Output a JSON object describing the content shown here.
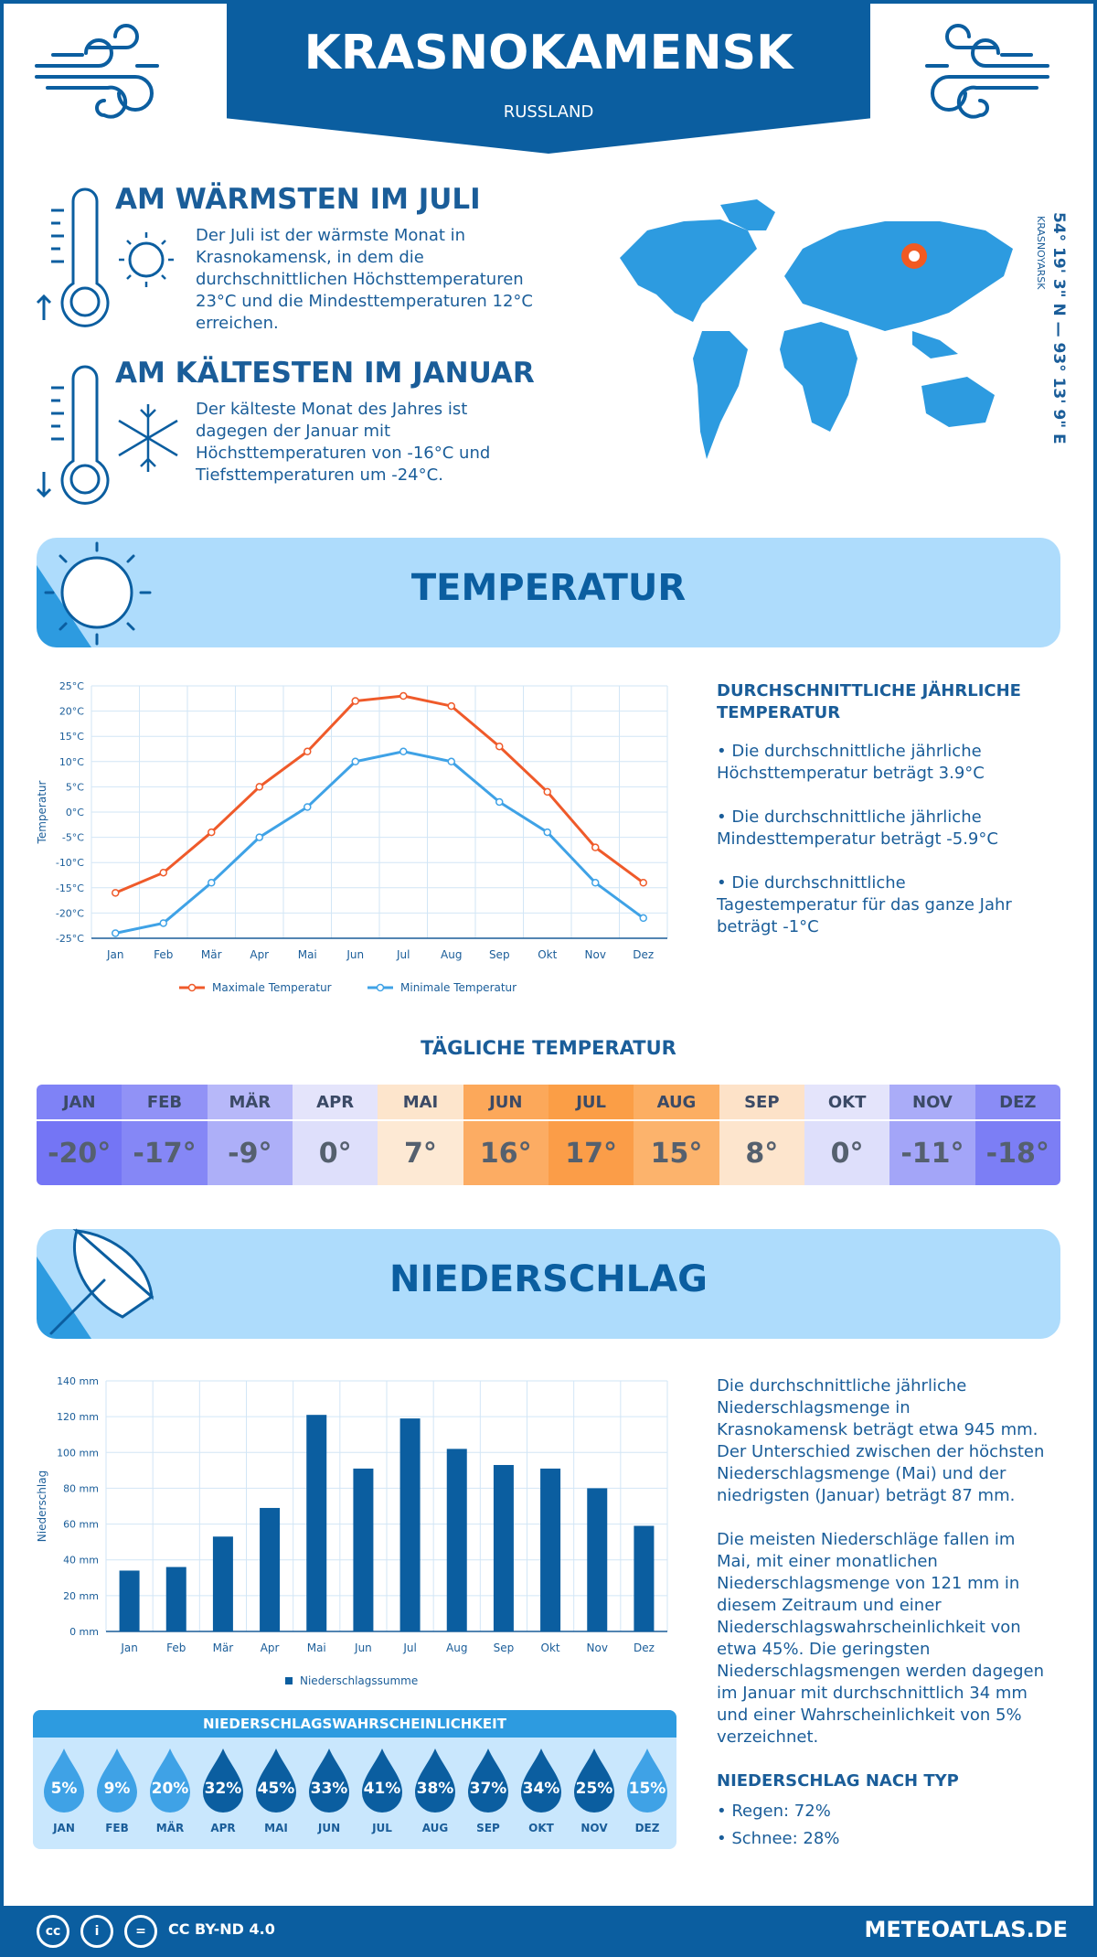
{
  "header": {
    "city": "KRASNOKAMENSK",
    "country": "RUSSLAND"
  },
  "facts": {
    "warm": {
      "title": "AM WÄRMSTEN IM JULI",
      "text": "Der Juli ist der wärmste Monat in Krasnokamensk, in dem die durchschnittlichen Höchsttemperaturen 23°C und die Mindesttemperaturen 12°C erreichen."
    },
    "cold": {
      "title": "AM KÄLTESTEN IM JANUAR",
      "text": "Der kälteste Monat des Jahres ist dagegen der Januar mit Höchsttemperaturen von -16°C und Tiefsttemperaturen um -24°C."
    }
  },
  "map": {
    "coords": "54° 19' 3\" N — 93° 13' 9\" E",
    "region": "KRASNOYARSK"
  },
  "temperature_section": {
    "title": "TEMPERATUR",
    "side_title": "DURCHSCHNITTLICHE JÄHRLICHE TEMPERATUR",
    "points": [
      "• Die durchschnittliche jährliche Höchsttemperatur beträgt 3.9°C",
      "• Die durchschnittliche jährliche Mindesttemperatur beträgt -5.9°C",
      "• Die durchschnittliche Tagestemperatur für das ganze Jahr beträgt -1°C"
    ]
  },
  "daily": {
    "title": "TÄGLICHE TEMPERATUR",
    "months": [
      "JAN",
      "FEB",
      "MÄR",
      "APR",
      "MAI",
      "JUN",
      "JUL",
      "AUG",
      "SEP",
      "OKT",
      "NOV",
      "DEZ"
    ],
    "values": [
      "-20°",
      "-17°",
      "-9°",
      "0°",
      "7°",
      "16°",
      "17°",
      "15°",
      "8°",
      "0°",
      "-11°",
      "-18°"
    ],
    "head_colors": [
      "#7f82f6",
      "#9192f6",
      "#b7b8f9",
      "#e4e4fb",
      "#fde5cc",
      "#fca85a",
      "#fb9e46",
      "#fcae62",
      "#fde2c8",
      "#e4e4fb",
      "#aaacf8",
      "#8a8cf6"
    ],
    "value_colors": [
      "#7475f5",
      "#8587f6",
      "#adaff8",
      "#dedffb",
      "#fde9d4",
      "#fcac63",
      "#fb9d48",
      "#fcb36c",
      "#fde5cd",
      "#dedffb",
      "#a3a5f8",
      "#7c7ef5"
    ]
  },
  "precip_section": {
    "title": "NIEDERSCHLAG",
    "paragraph1": "Die durchschnittliche jährliche Niederschlagsmenge in Krasnokamensk beträgt etwa 945 mm. Der Unterschied zwischen der höchsten Niederschlagsmenge (Mai) und der niedrigsten (Januar) beträgt 87 mm.",
    "paragraph2": "Die meisten Niederschläge fallen im Mai, mit einer monatlichen Niederschlagsmenge von 121 mm in diesem Zeitraum und einer Niederschlagswahrscheinlichkeit von etwa 45%. Die geringsten Niederschlagsmengen werden dagegen im Januar mit durchschnittlich 34 mm und einer Wahrscheinlichkeit von 5% verzeichnet.",
    "type_title": "NIEDERSCHLAG NACH TYP",
    "types": [
      "• Regen: 72%",
      "• Schnee: 28%"
    ]
  },
  "probability": {
    "title": "NIEDERSCHLAGSWAHRSCHEINLICHKEIT",
    "months": [
      "JAN",
      "FEB",
      "MÄR",
      "APR",
      "MAI",
      "JUN",
      "JUL",
      "AUG",
      "SEP",
      "OKT",
      "NOV",
      "DEZ"
    ],
    "values": [
      "5%",
      "9%",
      "20%",
      "32%",
      "45%",
      "33%",
      "41%",
      "38%",
      "37%",
      "34%",
      "25%",
      "15%"
    ],
    "colors": [
      "#3fa2e6",
      "#3fa2e6",
      "#3fa2e6",
      "#0b5ea0",
      "#0b5ea0",
      "#0b5ea0",
      "#0b5ea0",
      "#0b5ea0",
      "#0b5ea0",
      "#0b5ea0",
      "#0b5ea0",
      "#3fa2e6"
    ]
  },
  "footer": {
    "license": "CC BY-ND 4.0",
    "site": "METEOATLAS.DE",
    "cc1": "cc",
    "cc2": "i",
    "cc3": "="
  },
  "chart_data": [
    {
      "type": "line",
      "ylabel": "Temperatur",
      "categories": [
        "Jan",
        "Feb",
        "Mär",
        "Apr",
        "Mai",
        "Jun",
        "Jul",
        "Aug",
        "Sep",
        "Okt",
        "Nov",
        "Dez"
      ],
      "yticks": [
        "25°C",
        "20°C",
        "15°C",
        "10°C",
        "5°C",
        "0°C",
        "-5°C",
        "-10°C",
        "-15°C",
        "-20°C",
        "-25°C"
      ],
      "ylim": [
        -25,
        25
      ],
      "legend_position": "bottom",
      "grid": true,
      "series": [
        {
          "name": "Maximale Temperatur",
          "color": "#ef5a2a",
          "values": [
            -16,
            -12,
            -4,
            5,
            12,
            22,
            23,
            21,
            13,
            4,
            -7,
            -14
          ]
        },
        {
          "name": "Minimale Temperatur",
          "color": "#3fa2e6",
          "values": [
            -24,
            -22,
            -14,
            -5,
            1,
            10,
            12,
            10,
            2,
            -4,
            -14,
            -21
          ]
        }
      ]
    },
    {
      "type": "bar",
      "ylabel": "Niederschlag",
      "categories": [
        "Jan",
        "Feb",
        "Mär",
        "Apr",
        "Mai",
        "Jun",
        "Jul",
        "Aug",
        "Sep",
        "Okt",
        "Nov",
        "Dez"
      ],
      "yticks": [
        "140 mm",
        "120 mm",
        "100 mm",
        "80 mm",
        "60 mm",
        "40 mm",
        "20 mm",
        "0 mm"
      ],
      "ylim": [
        0,
        140
      ],
      "legend_position": "bottom",
      "grid": true,
      "series": [
        {
          "name": "Niederschlagssumme",
          "color": "#0b5ea0",
          "values": [
            34,
            36,
            53,
            69,
            121,
            91,
            119,
            102,
            93,
            91,
            80,
            59
          ]
        }
      ]
    }
  ]
}
